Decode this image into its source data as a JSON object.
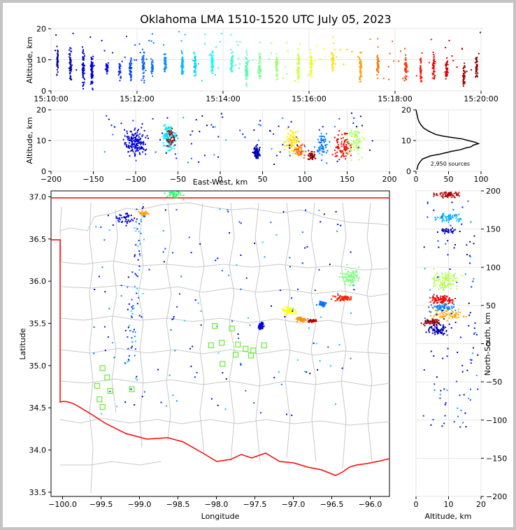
{
  "chart_data": {
    "type": "scatter",
    "title": "Oklahoma LMA 1510-1520 UTC July 05, 2023",
    "colormap": "jet (time)",
    "time_panel": {
      "ylabel": "Altitude, km",
      "ylim": [
        0,
        20
      ],
      "yticks": [
        "0",
        "10",
        "20"
      ],
      "xticks": [
        "15:10:00",
        "15:12:00",
        "15:14:00",
        "15:16:00",
        "15:18:00",
        "15:20:00"
      ],
      "xlim_min": [
        0,
        10
      ],
      "clusters": [
        {
          "t": 0.15,
          "alt": [
            4,
            19
          ],
          "n": 40
        },
        {
          "t": 0.45,
          "alt": [
            3,
            19
          ],
          "n": 50
        },
        {
          "t": 0.75,
          "alt": [
            2,
            19
          ],
          "n": 60
        },
        {
          "t": 0.95,
          "alt": [
            1,
            17
          ],
          "n": 70
        },
        {
          "t": 1.3,
          "alt": [
            5,
            12
          ],
          "n": 30
        },
        {
          "t": 1.6,
          "alt": [
            3,
            13
          ],
          "n": 25
        },
        {
          "t": 1.85,
          "alt": [
            3,
            14
          ],
          "n": 45
        },
        {
          "t": 2.15,
          "alt": [
            3,
            17
          ],
          "n": 45
        },
        {
          "t": 2.35,
          "alt": [
            4,
            14
          ],
          "n": 30
        },
        {
          "t": 2.65,
          "alt": [
            5,
            15
          ],
          "n": 40
        },
        {
          "t": 3.05,
          "alt": [
            4,
            17
          ],
          "n": 45
        },
        {
          "t": 3.35,
          "alt": [
            4,
            16
          ],
          "n": 40
        },
        {
          "t": 3.75,
          "alt": [
            4,
            17
          ],
          "n": 45
        },
        {
          "t": 4.2,
          "alt": [
            5,
            16
          ],
          "n": 40
        },
        {
          "t": 4.55,
          "alt": [
            2,
            17
          ],
          "n": 60
        },
        {
          "t": 4.85,
          "alt": [
            3,
            17
          ],
          "n": 45
        },
        {
          "t": 5.25,
          "alt": [
            4,
            17
          ],
          "n": 40
        },
        {
          "t": 5.75,
          "alt": [
            2,
            18
          ],
          "n": 50
        },
        {
          "t": 6.05,
          "alt": [
            3,
            18
          ],
          "n": 45
        },
        {
          "t": 6.55,
          "alt": [
            6,
            16
          ],
          "n": 35
        },
        {
          "t": 7.2,
          "alt": [
            2,
            17
          ],
          "n": 45
        },
        {
          "t": 7.6,
          "alt": [
            5,
            15
          ],
          "n": 35
        },
        {
          "t": 8.25,
          "alt": [
            3,
            15
          ],
          "n": 40
        },
        {
          "t": 8.6,
          "alt": [
            2,
            14
          ],
          "n": 40
        },
        {
          "t": 8.9,
          "alt": [
            3,
            16
          ],
          "n": 40
        },
        {
          "t": 9.2,
          "alt": [
            4,
            15
          ],
          "n": 40
        },
        {
          "t": 9.6,
          "alt": [
            1,
            14
          ],
          "n": 45
        },
        {
          "t": 9.9,
          "alt": [
            3,
            16
          ],
          "n": 40
        }
      ]
    },
    "ew_panel": {
      "xlabel": "East-West, km",
      "ylabel": "Altitude, km",
      "xlim": [
        -200,
        200
      ],
      "ylim": [
        0,
        20
      ],
      "xticks": [
        "−200",
        "−150",
        "−100",
        "−50",
        "0",
        "50",
        "100",
        "150",
        "200"
      ],
      "yticks": [
        "0",
        "10",
        "20"
      ]
    },
    "histogram": {
      "xlim": [
        0,
        100
      ],
      "ylim": [
        0,
        20
      ],
      "xticks": [
        "0",
        "50",
        "100"
      ],
      "yticks": [
        "0",
        "10",
        "20"
      ],
      "annotation": "2,950 sources",
      "profile": [
        [
          0.5,
          1
        ],
        [
          1,
          2
        ],
        [
          2,
          3
        ],
        [
          3,
          6
        ],
        [
          4,
          10
        ],
        [
          5,
          22
        ],
        [
          5.5,
          35
        ],
        [
          6,
          45
        ],
        [
          6.5,
          55
        ],
        [
          7,
          68
        ],
        [
          7.5,
          75
        ],
        [
          8,
          85
        ],
        [
          8.5,
          88
        ],
        [
          9,
          96
        ],
        [
          9.5,
          90
        ],
        [
          10,
          80
        ],
        [
          10.5,
          72
        ],
        [
          11,
          55
        ],
        [
          11.5,
          40
        ],
        [
          12,
          30
        ],
        [
          13,
          20
        ],
        [
          14,
          12
        ],
        [
          15,
          8
        ],
        [
          16,
          5
        ],
        [
          17,
          3
        ],
        [
          18,
          2
        ],
        [
          19,
          1
        ],
        [
          20,
          0
        ]
      ]
    },
    "plan_panel": {
      "xlabel": "Longitude",
      "ylabel": "Latitude",
      "xlim": [
        -100.15,
        -95.75
      ],
      "ylim": [
        33.45,
        37.07
      ],
      "xticks": [
        "−100.0",
        "−99.5",
        "−99.0",
        "−98.5",
        "−98.0",
        "−97.5",
        "−97.0",
        "−96.5",
        "−96.0"
      ],
      "yticks": [
        "33.5",
        "34.0",
        "34.5",
        "35.0",
        "35.5",
        "36.0",
        "36.5",
        "37.0"
      ],
      "stations": [
        [
          -99.48,
          34.97
        ],
        [
          -99.42,
          34.86
        ],
        [
          -99.55,
          34.76
        ],
        [
          -99.38,
          34.7
        ],
        [
          -99.1,
          34.72
        ],
        [
          -99.52,
          34.6
        ],
        [
          -99.48,
          34.51
        ],
        [
          -98.02,
          35.47
        ],
        [
          -97.8,
          35.44
        ],
        [
          -97.93,
          35.27
        ],
        [
          -98.07,
          35.24
        ],
        [
          -97.72,
          35.25
        ],
        [
          -97.62,
          35.2
        ],
        [
          -97.52,
          35.18
        ],
        [
          -97.38,
          35.24
        ],
        [
          -97.92,
          35.02
        ],
        [
          -97.75,
          35.13
        ],
        [
          -97.55,
          35.12
        ]
      ],
      "clusters": [
        {
          "lon": -96.25,
          "lat": 36.05,
          "sx": 0.12,
          "sy": 0.1,
          "color": "#7fff7f",
          "n": 90
        },
        {
          "lon": -96.35,
          "lat": 35.8,
          "sx": 0.12,
          "sy": 0.03,
          "color": "#ff2000",
          "n": 70
        },
        {
          "lon": -96.62,
          "lat": 35.73,
          "sx": 0.06,
          "sy": 0.03,
          "color": "#0070ff",
          "n": 40
        },
        {
          "lon": -97.05,
          "lat": 35.65,
          "sx": 0.08,
          "sy": 0.04,
          "color": "#ffff00",
          "n": 60
        },
        {
          "lon": -96.9,
          "lat": 35.55,
          "sx": 0.06,
          "sy": 0.03,
          "color": "#ff9000",
          "n": 50
        },
        {
          "lon": -96.75,
          "lat": 35.53,
          "sx": 0.06,
          "sy": 0.015,
          "color": "#b00000",
          "n": 40
        },
        {
          "lon": -97.42,
          "lat": 35.47,
          "sx": 0.03,
          "sy": 0.04,
          "color": "#0000e0",
          "n": 60
        },
        {
          "lon": -99.2,
          "lat": 36.75,
          "sx": 0.15,
          "sy": 0.08,
          "color": "#0000c0",
          "n": 45
        },
        {
          "lon": -98.95,
          "lat": 36.8,
          "sx": 0.06,
          "sy": 0.03,
          "color": "#ffa000",
          "n": 30
        },
        {
          "lon": -98.55,
          "lat": 37.02,
          "sx": 0.12,
          "sy": 0.05,
          "color": "#20ff60",
          "n": 40
        }
      ]
    },
    "ns_panel": {
      "xlabel": "Altitude, km",
      "ylabel": "North-South, km",
      "xlim": [
        0,
        20
      ],
      "ylim": [
        -200,
        200
      ],
      "xticks": [
        "0",
        "10",
        "20"
      ],
      "yticks": [
        "−200",
        "−150",
        "−100",
        "−50",
        "0",
        "50",
        "100",
        "150",
        "200"
      ]
    }
  }
}
